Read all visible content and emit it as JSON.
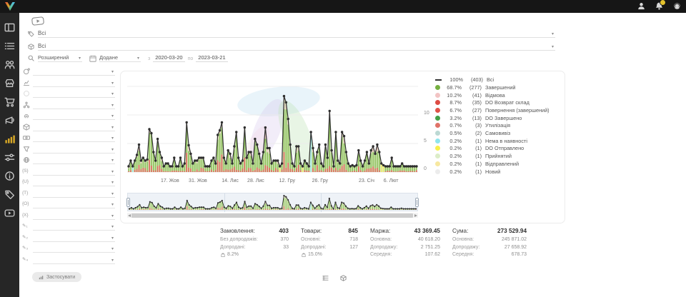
{
  "topbar": {
    "icons": [
      {
        "name": "avatar-icon"
      },
      {
        "name": "bell-icon",
        "badge_color": "#e3c22c"
      },
      {
        "name": "support-icon"
      }
    ]
  },
  "sidebar": {
    "active_index": 6,
    "active_color": "#d8a826",
    "items": [
      {
        "icon": "dashboard"
      },
      {
        "icon": "list"
      },
      {
        "icon": "users"
      },
      {
        "icon": "store"
      },
      {
        "icon": "cart"
      },
      {
        "icon": "megaphone"
      },
      {
        "icon": "chart-bars"
      },
      {
        "icon": "sliders"
      },
      {
        "icon": "info"
      },
      {
        "icon": "discount-tag"
      },
      {
        "icon": "video"
      }
    ]
  },
  "header_filters": {
    "category_select": {
      "icon": "tag",
      "value": "Всі"
    },
    "product_select": {
      "icon": "package",
      "value": "Всі"
    },
    "search_mode": {
      "icon": "search",
      "value": "Розширений"
    },
    "date_filter": {
      "icon": "calendar",
      "field": "Додане",
      "from_label": "з",
      "from": "2020-03-20",
      "to_label": "по",
      "to": "2023-03-21"
    }
  },
  "filter_panel": {
    "apply_label": "Застосувати",
    "rows": [
      {
        "icon": "globe-badge"
      },
      {
        "icon": "chart-flag"
      },
      {
        "icon": "circle"
      },
      {
        "icon": "network"
      },
      {
        "icon": "fingerprint"
      },
      {
        "icon": "package"
      },
      {
        "icon": "banknote"
      },
      {
        "icon": "funnel"
      },
      {
        "icon": "globe"
      },
      {
        "icon": "brace-s",
        "glyph": "{S}"
      },
      {
        "icon": "brace-u",
        "glyph": "{U}"
      },
      {
        "icon": "brace-t",
        "glyph": "{T}"
      },
      {
        "icon": "brace-o",
        "glyph": "{O}"
      },
      {
        "icon": "brace-x",
        "glyph": "{X}"
      },
      {
        "icon": "pencil-1",
        "glyph": "✎₁"
      },
      {
        "icon": "pencil-2",
        "glyph": "✎₂"
      },
      {
        "icon": "pencil-3",
        "glyph": "✎₃"
      },
      {
        "icon": "pencil-4",
        "glyph": "✎₄"
      }
    ]
  },
  "chart_data": {
    "type": "line",
    "title": "",
    "xlabel": "",
    "ylabel": "",
    "ylim": [
      0,
      15
    ],
    "y_ticks": [
      "0",
      "5",
      "10"
    ],
    "x_tick_labels": [
      "17. Жов",
      "31. Жов",
      "14. Лис",
      "28. Лис",
      "12. Гру",
      "26. Гру",
      "23. Січ",
      "6. Лют"
    ],
    "legend_position": "right",
    "line_color": "#2e2e2e",
    "area_fill": "#d3e7b6",
    "bar_colors": {
      "green": "#86bb53",
      "red": "#dc5a50",
      "pink": "#f0c5c1",
      "cyan": "#9fe3ea",
      "yellow": "#f2ea5f"
    },
    "series": [
      {
        "name": "Всі",
        "values": [
          1,
          2,
          1,
          2,
          3,
          4.8,
          2,
          2.5,
          2,
          2.2,
          7.5,
          6.8,
          3.5,
          2,
          5.8,
          3.5,
          2.5,
          1,
          1.5,
          1.5,
          1,
          1,
          2.5,
          1,
          1,
          2.5,
          1,
          1.5,
          8.7,
          4.7,
          3.2,
          1.5,
          2,
          2,
          2.5,
          2.5,
          2.5,
          1,
          1,
          1,
          2,
          2.5,
          1.5,
          6.5,
          7.3,
          8.7,
          2.5,
          1.5,
          3.8,
          3.2,
          1.5,
          4.5,
          7,
          2.5,
          1.5,
          2,
          7.8,
          2.5,
          3.5,
          3.5,
          1.5,
          5.8,
          4.8,
          3.2,
          1.5,
          3.5,
          7.8,
          4.2,
          4.2,
          1.5,
          2,
          2,
          2,
          1,
          1.5,
          13.3,
          12.2,
          9.3,
          4.8,
          1.5,
          1,
          4.5,
          4.5,
          1.5,
          1,
          2,
          1.5,
          1,
          7,
          4.2,
          1.5,
          3.5,
          4.8,
          1.5,
          1,
          4.8,
          2.5,
          10.7,
          3.8,
          1,
          7,
          2,
          1.5,
          7,
          6.3,
          3.5,
          1.5,
          1,
          1.2,
          1,
          1.2,
          3.8,
          2,
          1,
          2,
          3.5,
          1.5,
          3.8,
          4.5,
          3.2,
          4.8,
          3.5,
          1.5,
          1.2,
          1,
          1,
          1,
          2.5,
          1,
          1,
          1,
          1,
          1.5,
          1,
          1,
          1,
          1,
          1,
          1,
          1
        ]
      }
    ],
    "legend": [
      {
        "swatch": "line",
        "color": "#333333",
        "pct": "100%",
        "count": "(403)",
        "label": "Всі"
      },
      {
        "swatch": "dot",
        "color": "#76b041",
        "pct": "68.7%",
        "count": "(277)",
        "label": "Завершений"
      },
      {
        "swatch": "dot",
        "color": "#f2c4c4",
        "pct": "10.2%",
        "count": "(41)",
        "label": "Відмова"
      },
      {
        "swatch": "dot",
        "color": "#dd4b43",
        "pct": "8.7%",
        "count": "(35)",
        "label": "DO Возврат склад"
      },
      {
        "swatch": "dot",
        "color": "#e05349",
        "pct": "6.7%",
        "count": "(27)",
        "label": "Повернення (завершений)"
      },
      {
        "swatch": "dot",
        "color": "#43a047",
        "pct": "3.2%",
        "count": "(13)",
        "label": "DO Завершено"
      },
      {
        "swatch": "dot",
        "color": "#e07368",
        "pct": "0.7%",
        "count": "(3)",
        "label": "Утилізація"
      },
      {
        "swatch": "dot",
        "color": "#bcd9d4",
        "pct": "0.5%",
        "count": "(2)",
        "label": "Самовивіз"
      },
      {
        "swatch": "dot",
        "color": "#8ee5ee",
        "pct": "0.2%",
        "count": "(1)",
        "label": "Нема в наявності"
      },
      {
        "swatch": "dot",
        "color": "#f7f04d",
        "pct": "0.2%",
        "count": "(1)",
        "label": "DO Отправлено"
      },
      {
        "swatch": "dot",
        "color": "#dcedc8",
        "pct": "0.2%",
        "count": "(1)",
        "label": "Прийнятий"
      },
      {
        "swatch": "dot",
        "color": "#f7e8a0",
        "pct": "0.2%",
        "count": "(1)",
        "label": "Відправлений"
      },
      {
        "swatch": "dot",
        "color": "#ececec",
        "pct": "0.2%",
        "count": "(1)",
        "label": "Новий"
      }
    ]
  },
  "stats": {
    "columns": [
      {
        "title": "Замовлення:",
        "value": "403",
        "rows": [
          {
            "label": "Без допродажів:",
            "value": "370"
          },
          {
            "label": "Допродані:",
            "value": "33"
          }
        ],
        "badge": {
          "icon": "bag",
          "value": "8.2%"
        }
      },
      {
        "title": "Товари:",
        "value": "845",
        "rows": [
          {
            "label": "Основні:",
            "value": "718"
          },
          {
            "label": "Допродані:",
            "value": "127"
          }
        ],
        "badge": {
          "icon": "bag",
          "value": "15.0%"
        }
      },
      {
        "title": "Маржа:",
        "value": "43 369.45",
        "rows": [
          {
            "label": "Основна:",
            "value": "40 618.20"
          },
          {
            "label": "Допродажу:",
            "value": "2 751.25"
          },
          {
            "label": "Середня:",
            "value": "107.62"
          }
        ]
      },
      {
        "title": "Сума:",
        "value": "273 529.94",
        "rows": [
          {
            "label": "Основна:",
            "value": "245 871.02"
          },
          {
            "label": "Допродажу:",
            "value": "27 658.92"
          },
          {
            "label": "Середня:",
            "value": "678.73"
          }
        ]
      }
    ]
  },
  "footer": {
    "view_icons": [
      {
        "name": "table-list-icon"
      },
      {
        "name": "package-view-icon"
      }
    ]
  }
}
